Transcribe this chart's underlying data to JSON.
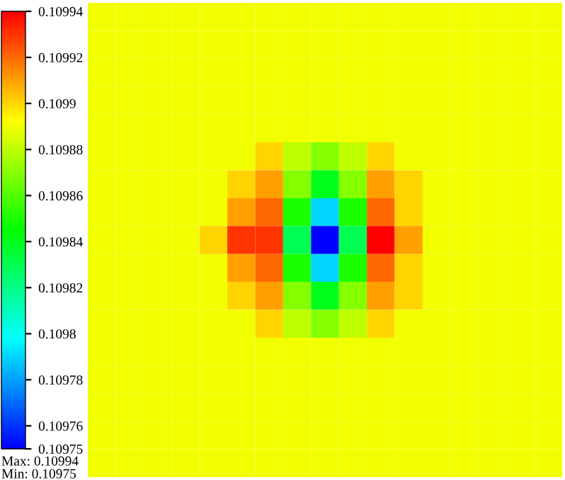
{
  "chart_data": {
    "type": "heatmap",
    "categories": [
      null,
      null,
      null,
      null,
      null,
      null,
      null,
      null,
      null,
      null,
      null,
      null,
      null,
      null,
      null,
      null,
      null
    ],
    "y_categories": [
      null,
      null,
      null,
      null,
      null,
      null,
      null,
      null,
      null,
      null,
      null,
      null,
      null,
      null,
      null,
      null,
      null
    ],
    "cells": [
      [
        0.10989,
        0.10989,
        0.10989,
        0.10989,
        0.10989,
        0.10989,
        0.10989,
        0.10989,
        0.10989,
        0.10989,
        0.10989,
        0.10989,
        0.10989,
        0.10989,
        0.10989,
        0.10989,
        0.10989
      ],
      [
        0.10989,
        0.10989,
        0.10989,
        0.10989,
        0.10989,
        0.10989,
        0.10989,
        0.10989,
        0.10989,
        0.10989,
        0.10989,
        0.10989,
        0.10989,
        0.10989,
        0.10989,
        0.10989,
        0.10989
      ],
      [
        0.10989,
        0.10989,
        0.10989,
        0.10989,
        0.10989,
        0.10989,
        0.10989,
        0.10989,
        0.10989,
        0.10989,
        0.10989,
        0.10989,
        0.10989,
        0.10989,
        0.10989,
        0.10989,
        0.10989
      ],
      [
        0.10989,
        0.10989,
        0.10989,
        0.10989,
        0.10989,
        0.10989,
        0.10989,
        0.10989,
        0.10989,
        0.10989,
        0.10989,
        0.10989,
        0.10989,
        0.10989,
        0.10989,
        0.10989,
        0.10989
      ],
      [
        0.10989,
        0.10989,
        0.10989,
        0.10989,
        0.10989,
        0.10989,
        0.10989,
        0.10989,
        0.10989,
        0.10989,
        0.10989,
        0.10989,
        0.10989,
        0.10989,
        0.10989,
        0.10989,
        0.10989
      ],
      [
        0.10989,
        0.10989,
        0.10989,
        0.10989,
        0.10989,
        0.10989,
        0.1099,
        0.10988,
        0.10987,
        0.10988,
        0.1099,
        0.10989,
        0.10989,
        0.10989,
        0.10989,
        0.10989,
        0.10989
      ],
      [
        0.10989,
        0.10989,
        0.10989,
        0.10989,
        0.10989,
        0.1099,
        0.10991,
        0.10987,
        0.10984,
        0.10987,
        0.10991,
        0.1099,
        0.10989,
        0.10989,
        0.10989,
        0.10989,
        0.10989
      ],
      [
        0.10989,
        0.10989,
        0.10989,
        0.10989,
        0.10989,
        0.10991,
        0.10992,
        0.10985,
        0.10979,
        0.10985,
        0.10992,
        0.1099,
        0.10989,
        0.10989,
        0.10989,
        0.10989,
        0.10989
      ],
      [
        0.10989,
        0.10989,
        0.10989,
        0.10989,
        0.1099,
        0.10993,
        0.10993,
        0.10983,
        0.10975,
        0.10983,
        0.10994,
        0.10991,
        0.10989,
        0.10989,
        0.10989,
        0.10989,
        0.10989
      ],
      [
        0.10989,
        0.10989,
        0.10989,
        0.10989,
        0.10989,
        0.10991,
        0.10992,
        0.10985,
        0.10979,
        0.10985,
        0.10992,
        0.1099,
        0.10989,
        0.10989,
        0.10989,
        0.10989,
        0.10989
      ],
      [
        0.10989,
        0.10989,
        0.10989,
        0.10989,
        0.10989,
        0.1099,
        0.10991,
        0.10987,
        0.10984,
        0.10987,
        0.10991,
        0.1099,
        0.10989,
        0.10989,
        0.10989,
        0.10989,
        0.10989
      ],
      [
        0.10989,
        0.10989,
        0.10989,
        0.10989,
        0.10989,
        0.10989,
        0.1099,
        0.10988,
        0.10987,
        0.10988,
        0.1099,
        0.10989,
        0.10989,
        0.10989,
        0.10989,
        0.10989,
        0.10989
      ],
      [
        0.10989,
        0.10989,
        0.10989,
        0.10989,
        0.10989,
        0.10989,
        0.10989,
        0.10989,
        0.10989,
        0.10989,
        0.10989,
        0.10989,
        0.10989,
        0.10989,
        0.10989,
        0.10989,
        0.10989
      ],
      [
        0.10989,
        0.10989,
        0.10989,
        0.10989,
        0.10989,
        0.10989,
        0.10989,
        0.10989,
        0.10989,
        0.10989,
        0.10989,
        0.10989,
        0.10989,
        0.10989,
        0.10989,
        0.10989,
        0.10989
      ],
      [
        0.10989,
        0.10989,
        0.10989,
        0.10989,
        0.10989,
        0.10989,
        0.10989,
        0.10989,
        0.10989,
        0.10989,
        0.10989,
        0.10989,
        0.10989,
        0.10989,
        0.10989,
        0.10989,
        0.10989
      ],
      [
        0.10989,
        0.10989,
        0.10989,
        0.10989,
        0.10989,
        0.10989,
        0.10989,
        0.10989,
        0.10989,
        0.10989,
        0.10989,
        0.10989,
        0.10989,
        0.10989,
        0.10989,
        0.10989,
        0.10989
      ],
      [
        0.10989,
        0.10989,
        0.10989,
        0.10989,
        0.10989,
        0.10989,
        0.10989,
        0.10989,
        0.10989,
        0.10989,
        0.10989,
        0.10989,
        0.10989,
        0.10989,
        0.10989,
        0.10989,
        0.10989
      ]
    ],
    "clim": [
      0.10975,
      0.10994
    ],
    "cticks": [
      0.10975,
      0.10976,
      0.10978,
      0.1098,
      0.10982,
      0.10984,
      0.10986,
      0.10988,
      0.1099,
      0.10992,
      0.10994
    ],
    "annotations": [
      "Max: 0.10994",
      "Min: 0.10975"
    ]
  }
}
